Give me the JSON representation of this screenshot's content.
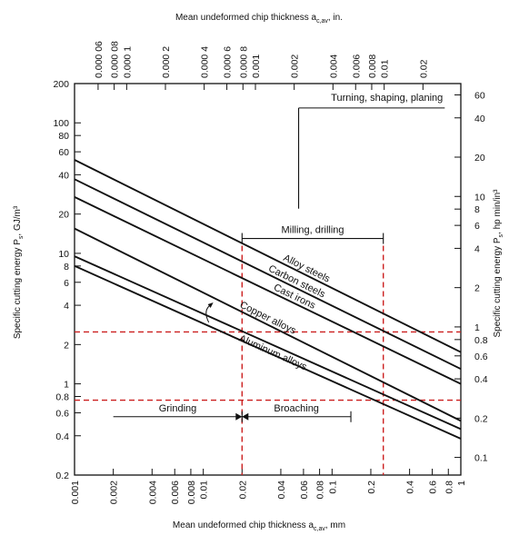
{
  "chart_data": {
    "type": "line",
    "title": "",
    "xlabel": "Mean undeformed chip thickness a",
    "xlabel_sub": "c,av",
    "xlabel_unit": ", mm",
    "x2label": "Mean undeformed chip thickness a",
    "x2label_sub": "c,av",
    "x2label_unit": ", in.",
    "ylabel": "Specific cutting energy P",
    "ylabel_sub": "s",
    "ylabel_unit": ", GJ/m³",
    "y2label": "Specific cutting energy P",
    "y2label_sub": "s",
    "y2label_unit": ", hp min/in³",
    "x_scale": "log",
    "y_scale": "log",
    "xlim": [
      0.001,
      1
    ],
    "ylim": [
      0.2,
      200
    ],
    "x_ticks": [
      {
        "value": 0.001,
        "label": "0.001"
      },
      {
        "value": 0.002,
        "label": "0.002"
      },
      {
        "value": 0.004,
        "label": "0.004"
      },
      {
        "value": 0.006,
        "label": "0.006"
      },
      {
        "value": 0.008,
        "label": "0.008"
      },
      {
        "value": 0.01,
        "label": "0.01"
      },
      {
        "value": 0.02,
        "label": "0.02"
      },
      {
        "value": 0.04,
        "label": "0.04"
      },
      {
        "value": 0.06,
        "label": "0.06"
      },
      {
        "value": 0.08,
        "label": "0.08"
      },
      {
        "value": 0.1,
        "label": "0.1"
      },
      {
        "value": 0.2,
        "label": "0.2"
      },
      {
        "value": 0.4,
        "label": "0.4"
      },
      {
        "value": 0.6,
        "label": "0.6"
      },
      {
        "value": 0.8,
        "label": "0.8"
      },
      {
        "value": 1,
        "label": "1"
      }
    ],
    "x2_ticks": [
      {
        "value": 6e-05,
        "label": "0.000 06"
      },
      {
        "value": 8e-05,
        "label": "0.000 08"
      },
      {
        "value": 0.0001,
        "label": "0.000 1"
      },
      {
        "value": 0.0002,
        "label": "0.000 2"
      },
      {
        "value": 0.0004,
        "label": "0.000 4"
      },
      {
        "value": 0.0006,
        "label": "0.000 6"
      },
      {
        "value": 0.0008,
        "label": "0.000 8"
      },
      {
        "value": 0.001,
        "label": "0.001"
      },
      {
        "value": 0.002,
        "label": "0.002"
      },
      {
        "value": 0.004,
        "label": "0.004"
      },
      {
        "value": 0.006,
        "label": "0.006"
      },
      {
        "value": 0.008,
        "label": "0.008"
      },
      {
        "value": 0.01,
        "label": "0.01"
      },
      {
        "value": 0.02,
        "label": "0.02"
      }
    ],
    "y_ticks": [
      {
        "value": 200,
        "label": "200"
      },
      {
        "value": 100,
        "label": "100"
      },
      {
        "value": 80,
        "label": "80"
      },
      {
        "value": 60,
        "label": "60"
      },
      {
        "value": 40,
        "label": "40"
      },
      {
        "value": 20,
        "label": "20"
      },
      {
        "value": 10,
        "label": "10"
      },
      {
        "value": 8,
        "label": "8"
      },
      {
        "value": 6,
        "label": "6"
      },
      {
        "value": 4,
        "label": "4"
      },
      {
        "value": 2,
        "label": "2"
      },
      {
        "value": 1,
        "label": "1"
      },
      {
        "value": 0.8,
        "label": "0.8"
      },
      {
        "value": 0.6,
        "label": "0.6"
      },
      {
        "value": 0.4,
        "label": "0.4"
      },
      {
        "value": 0.2,
        "label": "0.2"
      }
    ],
    "y2_ticks": [
      {
        "value": 60,
        "label": "60"
      },
      {
        "value": 40,
        "label": "40"
      },
      {
        "value": 20,
        "label": "20"
      },
      {
        "value": 10,
        "label": "10"
      },
      {
        "value": 8,
        "label": "8"
      },
      {
        "value": 6,
        "label": "6"
      },
      {
        "value": 4,
        "label": "4"
      },
      {
        "value": 2,
        "label": "2"
      },
      {
        "value": 1,
        "label": "1"
      },
      {
        "value": 0.8,
        "label": "0.8"
      },
      {
        "value": 0.6,
        "label": "0.6"
      },
      {
        "value": 0.4,
        "label": "0.4"
      },
      {
        "value": 0.2,
        "label": "0.2"
      },
      {
        "value": 0.1,
        "label": "0.1"
      }
    ],
    "y2_conversion_factor": 2.73,
    "series": [
      {
        "name": "Alloy steels",
        "x": [
          0.001,
          1
        ],
        "y": [
          52,
          1.75
        ]
      },
      {
        "name": "Carbon steels",
        "x": [
          0.001,
          1
        ],
        "y": [
          37,
          1.3
        ]
      },
      {
        "name": "Cast irons",
        "x": [
          0.001,
          1
        ],
        "y": [
          27,
          1.0
        ]
      },
      {
        "name": "Copper alloys",
        "x": [
          0.001,
          1
        ],
        "y": [
          15.5,
          0.52
        ]
      },
      {
        "name": "Aluminum alloys",
        "x": [
          0.001,
          1
        ],
        "y": [
          9.5,
          0.45
        ]
      },
      {
        "name": "",
        "x": [
          0.001,
          1
        ],
        "y": [
          8.0,
          0.38
        ]
      }
    ],
    "ranges": [
      {
        "name": "Turning, shaping, planing",
        "x_from": 0.055,
        "x_to": 0.75,
        "y": 130
      },
      {
        "name": "Milling, drilling",
        "x_from": 0.02,
        "x_to": 0.25,
        "y": 13
      },
      {
        "name": "Grinding",
        "x_from": 0.002,
        "x_to": 0.02,
        "y": 0.56
      },
      {
        "name": "Broaching",
        "x_from": 0.02,
        "x_to": 0.14,
        "y": 0.56
      }
    ],
    "reference_lines": {
      "vertical": [
        0.02,
        0.25
      ],
      "horizontal": [
        2.5,
        0.75
      ]
    },
    "colors": {
      "axis": "#111111",
      "series": "#111111",
      "reference": "#cc1f1f"
    }
  }
}
